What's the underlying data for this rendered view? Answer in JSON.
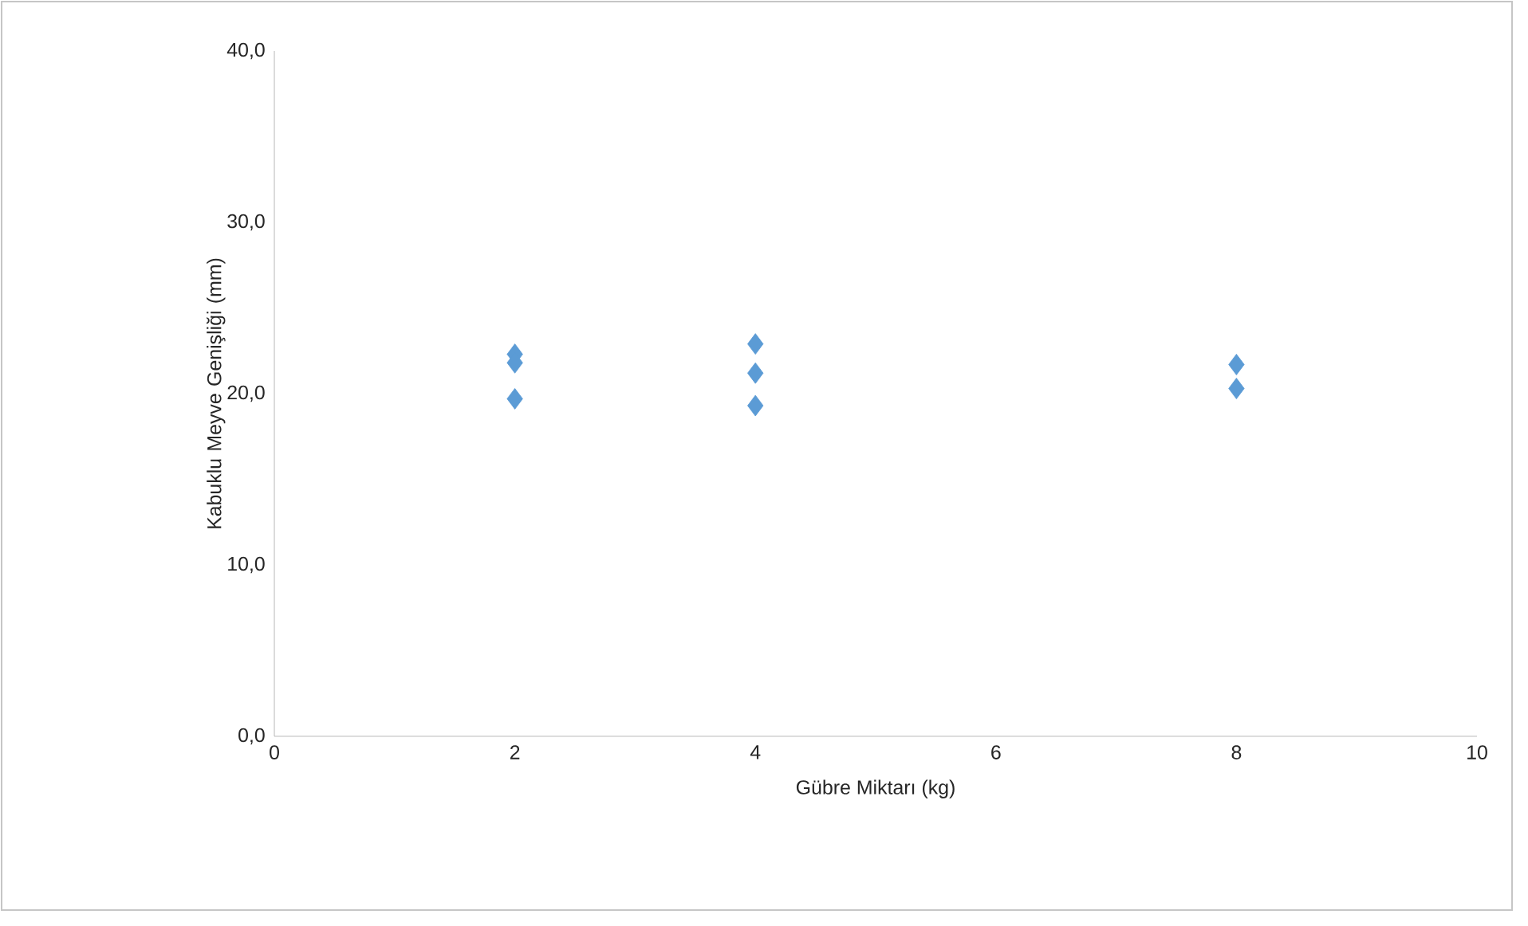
{
  "chart_data": {
    "type": "scatter",
    "xlabel": "Gübre Miktarı (kg)",
    "ylabel": "Kabuklu Meyve Genişliği (mm)",
    "x": [
      2,
      2,
      2,
      4,
      4,
      4,
      8,
      8
    ],
    "values": [
      22.3,
      21.8,
      19.7,
      22.9,
      21.2,
      19.3,
      21.7,
      20.3
    ],
    "color": "#5b9bd5",
    "marker": "diamond",
    "xlim": [
      0,
      10
    ],
    "xticks": [
      0,
      2,
      4,
      6,
      8,
      10
    ],
    "ylim": [
      0,
      40
    ],
    "yticks": [
      {
        "value": 0,
        "label": "0,0"
      },
      {
        "value": 10,
        "label": "10,0"
      },
      {
        "value": 20,
        "label": "20,0"
      },
      {
        "value": 30,
        "label": "30,0"
      },
      {
        "value": 40,
        "label": "40,0"
      }
    ],
    "grid": false
  }
}
